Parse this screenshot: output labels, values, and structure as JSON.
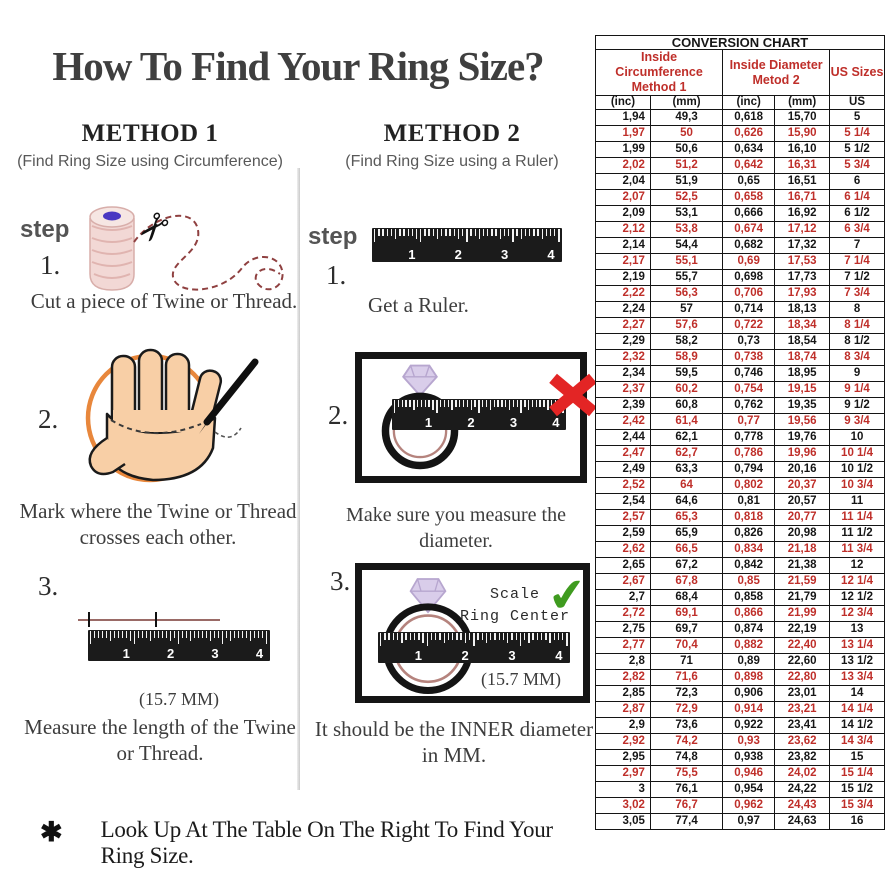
{
  "title": "How To Find Your Ring Size?",
  "labels": {
    "step": "step"
  },
  "method1": {
    "heading": "METHOD 1",
    "subheading": "(Find Ring Size using Circumference)",
    "step1_num": "1.",
    "step1_text": "Cut a piece of  Twine or Thread.",
    "step2_num": "2.",
    "step2_text": "Mark where the Twine or Thread crosses each other.",
    "step3_num": "3.",
    "step3_note": "(15.7 MM)",
    "step3_text": "Measure the length of the Twine or Thread."
  },
  "method2": {
    "heading": "METHOD 2",
    "subheading": "(Find Ring Size using a Ruler)",
    "step1_num": "1.",
    "step1_text": "Get a Ruler.",
    "step2_num": "2.",
    "step2_text": "Make sure you measure the diameter.",
    "step3_num": "3.",
    "scale_line1": "Scale",
    "scale_line2": "Ring Center",
    "scale_mm": "(15.7 MM)",
    "step3_text": "It should be the INNER diameter in MM."
  },
  "footnote": {
    "bullet": "✱",
    "text": "Look Up At The Table On The Right To Find Your Ring Size."
  },
  "ruler": {
    "numbers": [
      "1",
      "2",
      "3",
      "4"
    ]
  },
  "table": {
    "caption": "CONVERSION CHART",
    "group1_line1": "Inside Circumference",
    "group1_line2": "Method 1",
    "group2_line1": "Inside Diameter",
    "group2_line2": "Metod 2",
    "group3": "US Sizes",
    "sub_headers": [
      "(inc)",
      "(mm)",
      "(inc)",
      "(mm)",
      "US"
    ],
    "rows": [
      [
        "1,94",
        "49,3",
        "0,618",
        "15,70",
        "5"
      ],
      [
        "1,97",
        "50",
        "0,626",
        "15,90",
        "5 1/4"
      ],
      [
        "1,99",
        "50,6",
        "0,634",
        "16,10",
        "5 1/2"
      ],
      [
        "2,02",
        "51,2",
        "0,642",
        "16,31",
        "5 3/4"
      ],
      [
        "2,04",
        "51,9",
        "0,65",
        "16,51",
        "6"
      ],
      [
        "2,07",
        "52,5",
        "0,658",
        "16,71",
        "6 1/4"
      ],
      [
        "2,09",
        "53,1",
        "0,666",
        "16,92",
        "6 1/2"
      ],
      [
        "2,12",
        "53,8",
        "0,674",
        "17,12",
        "6 3/4"
      ],
      [
        "2,14",
        "54,4",
        "0,682",
        "17,32",
        "7"
      ],
      [
        "2,17",
        "55,1",
        "0,69",
        "17,53",
        "7 1/4"
      ],
      [
        "2,19",
        "55,7",
        "0,698",
        "17,73",
        "7 1/2"
      ],
      [
        "2,22",
        "56,3",
        "0,706",
        "17,93",
        "7 3/4"
      ],
      [
        "2,24",
        "57",
        "0,714",
        "18,13",
        "8"
      ],
      [
        "2,27",
        "57,6",
        "0,722",
        "18,34",
        "8 1/4"
      ],
      [
        "2,29",
        "58,2",
        "0,73",
        "18,54",
        "8 1/2"
      ],
      [
        "2,32",
        "58,9",
        "0,738",
        "18,74",
        "8 3/4"
      ],
      [
        "2,34",
        "59,5",
        "0,746",
        "18,95",
        "9"
      ],
      [
        "2,37",
        "60,2",
        "0,754",
        "19,15",
        "9 1/4"
      ],
      [
        "2,39",
        "60,8",
        "0,762",
        "19,35",
        "9 1/2"
      ],
      [
        "2,42",
        "61,4",
        "0,77",
        "19,56",
        "9 3/4"
      ],
      [
        "2,44",
        "62,1",
        "0,778",
        "19,76",
        "10"
      ],
      [
        "2,47",
        "62,7",
        "0,786",
        "19,96",
        "10 1/4"
      ],
      [
        "2,49",
        "63,3",
        "0,794",
        "20,16",
        "10 1/2"
      ],
      [
        "2,52",
        "64",
        "0,802",
        "20,37",
        "10 3/4"
      ],
      [
        "2,54",
        "64,6",
        "0,81",
        "20,57",
        "11"
      ],
      [
        "2,57",
        "65,3",
        "0,818",
        "20,77",
        "11 1/4"
      ],
      [
        "2,59",
        "65,9",
        "0,826",
        "20,98",
        "11 1/2"
      ],
      [
        "2,62",
        "66,5",
        "0,834",
        "21,18",
        "11 3/4"
      ],
      [
        "2,65",
        "67,2",
        "0,842",
        "21,38",
        "12"
      ],
      [
        "2,67",
        "67,8",
        "0,85",
        "21,59",
        "12 1/4"
      ],
      [
        "2,7",
        "68,4",
        "0,858",
        "21,79",
        "12 1/2"
      ],
      [
        "2,72",
        "69,1",
        "0,866",
        "21,99",
        "12 3/4"
      ],
      [
        "2,75",
        "69,7",
        "0,874",
        "22,19",
        "13"
      ],
      [
        "2,77",
        "70,4",
        "0,882",
        "22,40",
        "13 1/4"
      ],
      [
        "2,8",
        "71",
        "0,89",
        "22,60",
        "13 1/2"
      ],
      [
        "2,82",
        "71,6",
        "0,898",
        "22,80",
        "13 3/4"
      ],
      [
        "2,85",
        "72,3",
        "0,906",
        "23,01",
        "14"
      ],
      [
        "2,87",
        "72,9",
        "0,914",
        "23,21",
        "14 1/4"
      ],
      [
        "2,9",
        "73,6",
        "0,922",
        "23,41",
        "14 1/2"
      ],
      [
        "2,92",
        "74,2",
        "0,93",
        "23,62",
        "14 3/4"
      ],
      [
        "2,95",
        "74,8",
        "0,938",
        "23,82",
        "15"
      ],
      [
        "2,97",
        "75,5",
        "0,946",
        "24,02",
        "15 1/4"
      ],
      [
        "3",
        "76,1",
        "0,954",
        "24,22",
        "15 1/2"
      ],
      [
        "3,02",
        "76,7",
        "0,962",
        "24,43",
        "15 3/4"
      ],
      [
        "3,05",
        "77,4",
        "0,97",
        "24,63",
        "16"
      ]
    ]
  },
  "colors": {
    "accent_red": "#bf2f2a",
    "x_red": "#e32525",
    "check_green": "#3f9b1f",
    "circle_orange": "#e8873c",
    "skin": "#f8cfa6",
    "diamond": "#d9cdea",
    "ring_inner": "#b5837d"
  }
}
